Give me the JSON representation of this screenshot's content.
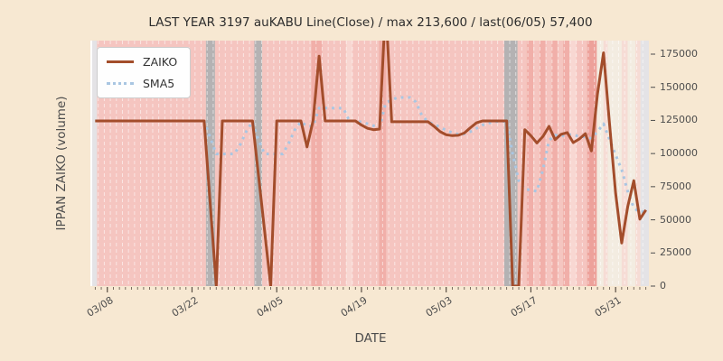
{
  "title": "LAST YEAR 3197 auKABU Line(Close) / max 213,600 / last(06/05) 57,400",
  "legend": {
    "items": [
      {
        "label": "ZAIKO",
        "style": "solid",
        "color": "#a34d2b"
      },
      {
        "label": "SMA5",
        "style": "dotted",
        "color": "#a9c6e2"
      }
    ]
  },
  "colors": {
    "figure_bg": "#f7e8d2",
    "tick_text": "#4d4d4d",
    "tick_mark": "#5a4f45",
    "title_text": "#2d2d2d",
    "plot_left_edge": "#ffffff"
  },
  "chart_data": {
    "type": "line",
    "title": "LAST YEAR 3197 auKABU Line(Close) / max 213,600 / last(06/05) 57,400",
    "xlabel": "DATE",
    "ylabel": "IPPAN ZAIKO (volume)",
    "max": 213600,
    "last": {
      "date": "06/05",
      "value": 57400
    },
    "n_days": 92,
    "x_tick_labels": [
      "03/08",
      "03/22",
      "04/05",
      "04/19",
      "05/03",
      "05/17",
      "05/31"
    ],
    "x_tick_day_index": [
      2,
      16,
      30,
      44,
      58,
      72,
      86
    ],
    "y_ticks": [
      0,
      25000,
      50000,
      75000,
      100000,
      125000,
      150000,
      175000
    ],
    "ylim": [
      0,
      185000
    ],
    "grid": {
      "day_gridlines": true,
      "color": "rgba(255,255,255,0.55)",
      "dash": [
        4,
        3
      ]
    },
    "legend_position": "upper-left",
    "series": [
      {
        "name": "ZAIKO",
        "style": "solid",
        "color": "#a34d2b",
        "width": 3,
        "values": [
          124600,
          124600,
          124600,
          124600,
          124600,
          124600,
          124600,
          124600,
          124600,
          124600,
          124600,
          124600,
          124600,
          124600,
          124600,
          124600,
          124600,
          124600,
          124600,
          62000,
          0,
          124600,
          124600,
          124600,
          124600,
          124600,
          124600,
          83000,
          41500,
          0,
          124600,
          124600,
          124600,
          124600,
          124600,
          105000,
          124600,
          173500,
          124600,
          124600,
          124600,
          124600,
          124600,
          124600,
          121500,
          119000,
          118000,
          118500,
          213600,
          124000,
          124000,
          124000,
          124000,
          124000,
          124000,
          124000,
          120500,
          116500,
          114200,
          113500,
          113800,
          115500,
          119500,
          123200,
          124600,
          124600,
          124600,
          124600,
          124600,
          0,
          0,
          118000,
          113500,
          108000,
          113000,
          120500,
          110500,
          114500,
          115800,
          108300,
          111000,
          115000,
          102000,
          145000,
          176000,
          122000,
          70000,
          32500,
          60000,
          79500,
          50500,
          57400
        ]
      },
      {
        "name": "SMA5",
        "style": "dotted",
        "color": "#a9c6e2",
        "width": 3,
        "values": [
          null,
          null,
          null,
          null,
          124600,
          124600,
          124600,
          124600,
          124600,
          124600,
          124600,
          124600,
          124600,
          124600,
          124600,
          124600,
          124600,
          124600,
          124600,
          112000,
          99700,
          99700,
          99700,
          99700,
          107000,
          117000,
          124000,
          110000,
          99700,
          99700,
          99700,
          99700,
          108000,
          118000,
          124000,
          120700,
          120700,
          134300,
          134300,
          134300,
          134300,
          134300,
          124600,
          124600,
          123800,
          122500,
          121000,
          119600,
          138000,
          140500,
          142300,
          142300,
          142300,
          139000,
          128500,
          124000,
          122000,
          120000,
          117500,
          115800,
          114500,
          114800,
          116500,
          119000,
          121500,
          123000,
          124000,
          124300,
          124300,
          99500,
          79500,
          73000,
          72500,
          71500,
          88000,
          110000,
          114000,
          113000,
          114500,
          114000,
          113000,
          112500,
          111500,
          116500,
          122500,
          110500,
          99000,
          87800,
          71500,
          59000,
          55800,
          56500
        ]
      }
    ],
    "background_bands": [
      {
        "d0": 0,
        "d1": 0.8,
        "c": "lg"
      },
      {
        "d0": 0.8,
        "d1": 18.8,
        "c": "p1"
      },
      {
        "d0": 18.8,
        "d1": 20.3,
        "c": "gr"
      },
      {
        "d0": 20.3,
        "d1": 26.8,
        "c": "p1"
      },
      {
        "d0": 26.8,
        "d1": 28.1,
        "c": "gr"
      },
      {
        "d0": 28.1,
        "d1": 36.2,
        "c": "p1"
      },
      {
        "d0": 36.2,
        "d1": 38,
        "c": "p2"
      },
      {
        "d0": 38,
        "d1": 42,
        "c": "p1"
      },
      {
        "d0": 42,
        "d1": 43,
        "c": "pl"
      },
      {
        "d0": 43,
        "d1": 47.4,
        "c": "p1"
      },
      {
        "d0": 47.4,
        "d1": 48.6,
        "c": "p2"
      },
      {
        "d0": 48.6,
        "d1": 68.1,
        "c": "p1"
      },
      {
        "d0": 68.1,
        "d1": 70.3,
        "c": "gr"
      },
      {
        "d0": 70.3,
        "d1": 71.8,
        "c": "p1"
      },
      {
        "d0": 71.8,
        "d1": 72.9,
        "c": "p2"
      },
      {
        "d0": 72.9,
        "d1": 73.9,
        "c": "p1"
      },
      {
        "d0": 73.9,
        "d1": 74.9,
        "c": "p2"
      },
      {
        "d0": 74.9,
        "d1": 75.9,
        "c": "p1"
      },
      {
        "d0": 75.9,
        "d1": 76.9,
        "c": "p2"
      },
      {
        "d0": 76.9,
        "d1": 77.8,
        "c": "p1"
      },
      {
        "d0": 77.8,
        "d1": 78.9,
        "c": "p2"
      },
      {
        "d0": 78.9,
        "d1": 80,
        "c": "pl"
      },
      {
        "d0": 80,
        "d1": 81.8,
        "c": "p1"
      },
      {
        "d0": 81.8,
        "d1": 83.4,
        "c": "p3"
      },
      {
        "d0": 83.4,
        "d1": 84.5,
        "c": "cr"
      },
      {
        "d0": 84.5,
        "d1": 85.2,
        "c": "cp"
      },
      {
        "d0": 85.2,
        "d1": 87.5,
        "c": "cr"
      },
      {
        "d0": 87.5,
        "d1": 88.5,
        "c": "cp"
      },
      {
        "d0": 88.5,
        "d1": 89.8,
        "c": "cr"
      },
      {
        "d0": 89.8,
        "d1": 90.6,
        "c": "cp"
      },
      {
        "d0": 90.6,
        "d1": 92,
        "c": "lg"
      }
    ],
    "band_colors": {
      "p1": "#f5c5c0",
      "p2": "#f1afa9",
      "p3": "#eda19a",
      "pl": "#f8d7d2",
      "gr": "#b4b2b3",
      "cr": "#f3ece1",
      "cp": "#f6dcd5",
      "lg": "#e4e3e6"
    }
  }
}
